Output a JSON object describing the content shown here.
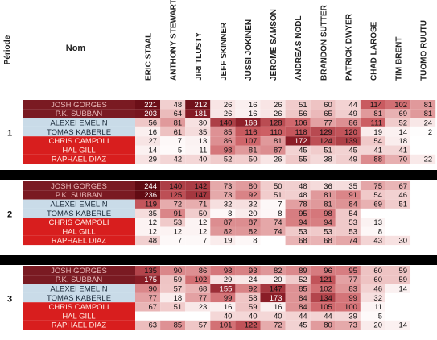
{
  "chart_data": {
    "type": "heatmap",
    "header": {
      "period_label": "Période",
      "name_label": "Nom"
    },
    "columns": [
      "ERIC STAAL",
      "ANTHONY STEWART",
      "JIRI TLUSTY",
      "JEFF SKINNER",
      "JUSSI JOKINEN",
      "JEROME SAMSON",
      "ANDREAS NODL",
      "BRANDON SUTTER",
      "PATRICK DWYER",
      "CHAD LAROSE",
      "TIM BRENT",
      "TUOMO RUUTU"
    ],
    "periods": [
      {
        "label": "1",
        "rows": [
          {
            "name": "JOSH GORGES",
            "group": "maroon",
            "cells": [
              221,
              48,
              212,
              26,
              16,
              26,
              51,
              60,
              44,
              114,
              102,
              81
            ]
          },
          {
            "name": "P.K. SUBBAN",
            "group": "maroon",
            "cells": [
              203,
              64,
              181,
              26,
              16,
              26,
              56,
              65,
              49,
              81,
              69,
              81
            ]
          },
          {
            "name": "ALEXEI EMELIN",
            "group": "blue",
            "cells": [
              56,
              81,
              30,
              140,
              168,
              128,
              106,
              77,
              86,
              111,
              52,
              24
            ]
          },
          {
            "name": "TOMAS KABERLE",
            "group": "blue",
            "cells": [
              16,
              61,
              35,
              85,
              116,
              110,
              118,
              129,
              120,
              19,
              14,
              2
            ]
          },
          {
            "name": "CHRIS CAMPOLI",
            "group": "red",
            "cells": [
              27,
              7,
              13,
              86,
              107,
              81,
              172,
              124,
              139,
              54,
              18,
              null
            ]
          },
          {
            "name": "HAL GILL",
            "group": "red",
            "cells": [
              14,
              5,
              11,
              98,
              81,
              87,
              45,
              51,
              45,
              41,
              41,
              null
            ]
          },
          {
            "name": "RAPHAEL DIAZ",
            "group": "red",
            "cells": [
              29,
              42,
              40,
              52,
              50,
              26,
              55,
              38,
              49,
              88,
              70,
              22
            ]
          }
        ]
      },
      {
        "label": "2",
        "rows": [
          {
            "name": "JOSH GORGES",
            "group": "maroon",
            "cells": [
              244,
              140,
              142,
              73,
              80,
              50,
              48,
              36,
              35,
              75,
              67,
              null
            ]
          },
          {
            "name": "P.K. SUBBAN",
            "group": "maroon",
            "cells": [
              236,
              125,
              147,
              73,
              92,
              51,
              48,
              81,
              91,
              54,
              46,
              null
            ]
          },
          {
            "name": "ALEXEI EMELIN",
            "group": "blue",
            "cells": [
              119,
              72,
              71,
              32,
              32,
              7,
              78,
              81,
              84,
              69,
              51,
              null
            ]
          },
          {
            "name": "TOMAS KABERLE",
            "group": "blue",
            "cells": [
              35,
              91,
              50,
              8,
              20,
              8,
              95,
              98,
              54,
              null,
              null,
              null
            ]
          },
          {
            "name": "CHRIS CAMPOLI",
            "group": "red",
            "cells": [
              12,
              53,
              12,
              87,
              87,
              74,
              94,
              94,
              53,
              13,
              null,
              null
            ]
          },
          {
            "name": "HAL GILL",
            "group": "red",
            "cells": [
              12,
              12,
              12,
              82,
              82,
              74,
              53,
              53,
              53,
              8,
              null,
              null
            ]
          },
          {
            "name": "RAPHAEL DIAZ",
            "group": "red",
            "cells": [
              48,
              7,
              7,
              19,
              8,
              null,
              68,
              68,
              74,
              43,
              30,
              null
            ]
          }
        ]
      },
      {
        "label": "3",
        "rows": [
          {
            "name": "JOSH GORGES",
            "group": "maroon",
            "cells": [
              135,
              90,
              86,
              98,
              93,
              82,
              89,
              96,
              95,
              60,
              59,
              null
            ]
          },
          {
            "name": "P.K. SUBBAN",
            "group": "maroon",
            "cells": [
              175,
              59,
              102,
              29,
              24,
              20,
              52,
              121,
              77,
              60,
              59,
              null
            ]
          },
          {
            "name": "ALEXEI EMELIN",
            "group": "blue",
            "cells": [
              90,
              57,
              68,
              155,
              92,
              147,
              85,
              102,
              83,
              46,
              14,
              null
            ]
          },
          {
            "name": "TOMAS KABERLE",
            "group": "blue",
            "cells": [
              77,
              18,
              77,
              99,
              58,
              173,
              84,
              134,
              99,
              32,
              null,
              null
            ]
          },
          {
            "name": "CHRIS CAMPOLI",
            "group": "red",
            "cells": [
              67,
              51,
              23,
              16,
              59,
              16,
              84,
              105,
              100,
              11,
              null,
              null
            ]
          },
          {
            "name": "HAL GILL",
            "group": "red",
            "cells": [
              null,
              null,
              null,
              40,
              40,
              40,
              44,
              44,
              39,
              5,
              null,
              null
            ]
          },
          {
            "name": "RAPHAEL DIAZ",
            "group": "red",
            "cells": [
              63,
              85,
              57,
              101,
              122,
              72,
              45,
              80,
              73,
              20,
              14,
              null
            ]
          }
        ]
      }
    ]
  }
}
